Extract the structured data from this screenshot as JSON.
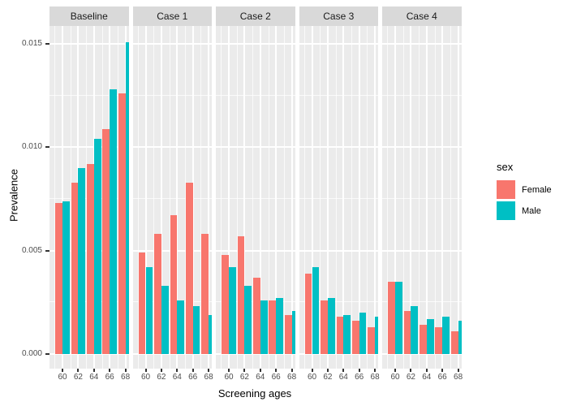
{
  "chart_data": {
    "type": "bar",
    "title": "",
    "xlabel": "Screening ages",
    "ylabel": "Prevalence",
    "categories": [
      60,
      62,
      64,
      66,
      68
    ],
    "y_ticks": [
      0.0,
      0.005,
      0.01,
      0.015
    ],
    "y_tick_labels": [
      "0.000",
      "0.005",
      "0.010",
      "0.015"
    ],
    "y_minor_ticks": [
      0.0025,
      0.0075,
      0.0125
    ],
    "ylim": [
      0,
      0.0157
    ],
    "grid": "on",
    "legend_position": "right",
    "legend": {
      "title": "sex",
      "entries": [
        {
          "label": "Female",
          "color": "#F8766D"
        },
        {
          "label": "Male",
          "color": "#00BFC4"
        }
      ]
    },
    "facets": [
      {
        "label": "Baseline",
        "series": [
          {
            "name": "Female",
            "values": [
              0.0073,
              0.0083,
              0.0092,
              0.0109,
              0.0126
            ]
          },
          {
            "name": "Male",
            "values": [
              0.0074,
              0.009,
              0.0104,
              0.0128,
              0.0151
            ]
          }
        ]
      },
      {
        "label": "Case 1",
        "series": [
          {
            "name": "Female",
            "values": [
              0.0049,
              0.0058,
              0.0067,
              0.0083,
              0.0058
            ]
          },
          {
            "name": "Male",
            "values": [
              0.0042,
              0.0033,
              0.0026,
              0.0023,
              0.0019
            ]
          }
        ]
      },
      {
        "label": "Case 2",
        "series": [
          {
            "name": "Female",
            "values": [
              0.0048,
              0.0057,
              0.0037,
              0.0026,
              0.0019
            ]
          },
          {
            "name": "Male",
            "values": [
              0.0042,
              0.0033,
              0.0026,
              0.0027,
              0.0021
            ]
          }
        ]
      },
      {
        "label": "Case 3",
        "series": [
          {
            "name": "Female",
            "values": [
              0.0039,
              0.0026,
              0.0018,
              0.0016,
              0.0013
            ]
          },
          {
            "name": "Male",
            "values": [
              0.0042,
              0.0027,
              0.0019,
              0.002,
              0.0018
            ]
          }
        ]
      },
      {
        "label": "Case 4",
        "series": [
          {
            "name": "Female",
            "values": [
              0.0035,
              0.0021,
              0.0014,
              0.0013,
              0.0011
            ]
          },
          {
            "name": "Male",
            "values": [
              0.0035,
              0.0023,
              0.0017,
              0.0018,
              0.0016
            ]
          }
        ]
      }
    ],
    "colors": {
      "female": "#F8766D",
      "male": "#00BFC4",
      "panel_bg": "#EBEBEB",
      "strip_bg": "#D9D9D9",
      "gridline": "#FFFFFF",
      "tick_label": "#4D4D4D",
      "axis_title": "#000000"
    }
  }
}
